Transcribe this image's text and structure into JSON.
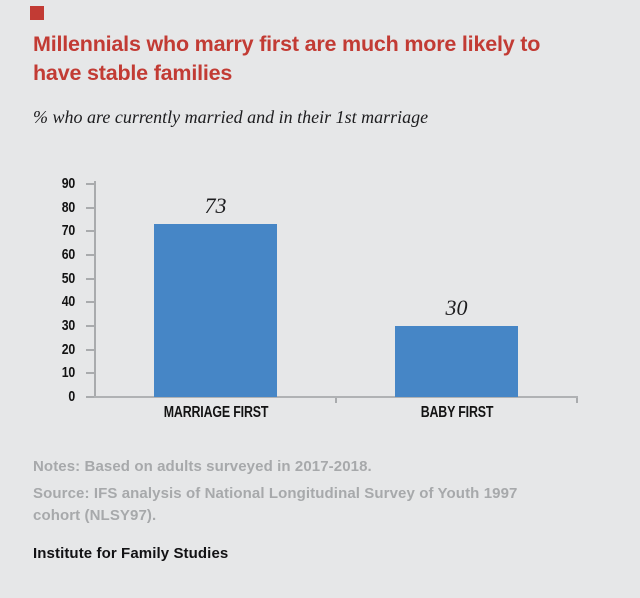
{
  "brand": {
    "square_color": "#c23b34"
  },
  "header": {
    "title": "Millennials who marry first are much more likely to have stable families",
    "title_lines": [
      "Millennials who marry first are much more likely to",
      "have stable families"
    ],
    "title_color": "#c23b34",
    "subtitle": "% who are currently married and in their 1st marriage"
  },
  "chart_data": {
    "type": "bar",
    "categories": [
      "MARRIAGE FIRST",
      "BABY FIRST"
    ],
    "values": [
      73,
      30
    ],
    "value_labels": [
      "73",
      "30"
    ],
    "title": "Millennials who marry first are much more likely to have stable families",
    "subtitle": "% who are currently married and in their 1st marriage",
    "xlabel": "",
    "ylabel": "",
    "ylim": [
      0,
      90
    ],
    "yticks": [
      0,
      10,
      20,
      30,
      40,
      50,
      60,
      70,
      80,
      90
    ],
    "grid": false,
    "legend": "none",
    "bar_color": "#4686c6",
    "axis_color": "#a9abad"
  },
  "notes": {
    "notes_line": "Notes: Based on adults surveyed in 2017-2018.",
    "source_lines": [
      "Source: IFS analysis of National Longitudinal Survey of Youth 1997",
      "cohort (NLSY97)."
    ]
  },
  "footer": {
    "brand": "Institute for Family Studies"
  }
}
